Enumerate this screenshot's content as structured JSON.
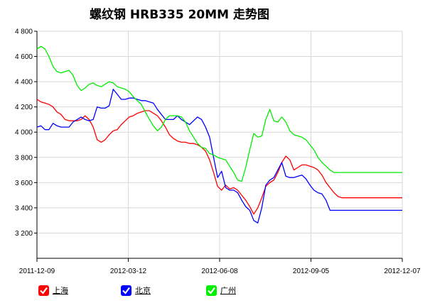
{
  "chart_data": {
    "type": "line",
    "title": "螺纹钢 HRB335 20MM 走势图",
    "xlabel": "",
    "ylabel": "",
    "ylim": [
      3000,
      4800
    ],
    "yticks": [
      3200,
      3400,
      3600,
      3800,
      4000,
      4200,
      4400,
      4600,
      4800
    ],
    "ytick_labels": [
      "3 200",
      "3 400",
      "3 600",
      "3 800",
      "4 000",
      "4 200",
      "4 400",
      "4 600",
      "4 800"
    ],
    "xtick_labels": [
      "2011-12-09",
      "2012-03-12",
      "2012-06-08",
      "2012-09-05",
      "2012-12-07"
    ],
    "grid": true,
    "legend_position": "bottom",
    "x": [
      0,
      4,
      8,
      12,
      16,
      20,
      24,
      28,
      32,
      36,
      40,
      44,
      48,
      52,
      56,
      60,
      64,
      68,
      72,
      76,
      80,
      84,
      88,
      92,
      96,
      100,
      104,
      108,
      112,
      116,
      120,
      124,
      128,
      132,
      136,
      140,
      144,
      148,
      152,
      156,
      160,
      164,
      168,
      172,
      176,
      180,
      184,
      188,
      192,
      196,
      200,
      204,
      208,
      212,
      216,
      220,
      224,
      228,
      232,
      236,
      240,
      244,
      248,
      252,
      256,
      260,
      264,
      268,
      272,
      276,
      280,
      284,
      288,
      292,
      296,
      300,
      304,
      308,
      312,
      316,
      320,
      324,
      328,
      332,
      336,
      340,
      344,
      348,
      352,
      356,
      360,
      364
    ],
    "series": [
      {
        "name": "上海",
        "color": "#ff0000",
        "values": [
          4260,
          4240,
          4230,
          4220,
          4200,
          4160,
          4140,
          4100,
          4090,
          4090,
          4090,
          4100,
          4130,
          4100,
          4040,
          3940,
          3920,
          3940,
          3980,
          4010,
          4020,
          4060,
          4090,
          4120,
          4130,
          4150,
          4160,
          4170,
          4170,
          4150,
          4130,
          4090,
          4040,
          3980,
          3950,
          3930,
          3920,
          3920,
          3910,
          3910,
          3900,
          3880,
          3850,
          3780,
          3680,
          3570,
          3540,
          3580,
          3550,
          3560,
          3540,
          3500,
          3460,
          3410,
          3350,
          3400,
          3480,
          3570,
          3600,
          3620,
          3680,
          3760,
          3810,
          3780,
          3700,
          3720,
          3740,
          3740,
          3730,
          3720,
          3700,
          3660,
          3600,
          3560,
          3520,
          3490,
          3480,
          3480,
          3480,
          3480,
          3480,
          3480,
          3480,
          3480,
          3480,
          3480,
          3480,
          3480,
          3480,
          3480,
          3480,
          3480
        ]
      },
      {
        "name": "北京",
        "color": "#0000ff",
        "values": [
          4040,
          4050,
          4020,
          4020,
          4070,
          4050,
          4040,
          4040,
          4040,
          4080,
          4100,
          4120,
          4100,
          4090,
          4100,
          4200,
          4190,
          4190,
          4210,
          4340,
          4300,
          4260,
          4260,
          4270,
          4270,
          4260,
          4250,
          4250,
          4240,
          4230,
          4180,
          4140,
          4100,
          4100,
          4100,
          4130,
          4100,
          4080,
          4060,
          4090,
          4120,
          4100,
          4040,
          3960,
          3800,
          3640,
          3690,
          3560,
          3540,
          3540,
          3520,
          3460,
          3410,
          3380,
          3300,
          3280,
          3400,
          3580,
          3620,
          3640,
          3700,
          3760,
          3650,
          3640,
          3640,
          3650,
          3660,
          3630,
          3580,
          3540,
          3520,
          3510,
          3460,
          3380,
          3380,
          3380,
          3380,
          3380,
          3380,
          3380,
          3380,
          3380,
          3380,
          3380,
          3380,
          3380,
          3380,
          3380,
          3380,
          3380,
          3380,
          3380
        ]
      },
      {
        "name": "广州",
        "color": "#00ee00",
        "values": [
          4660,
          4680,
          4660,
          4600,
          4520,
          4480,
          4470,
          4480,
          4490,
          4450,
          4370,
          4330,
          4350,
          4380,
          4390,
          4370,
          4360,
          4380,
          4400,
          4390,
          4360,
          4350,
          4340,
          4320,
          4280,
          4250,
          4220,
          4160,
          4100,
          4050,
          4010,
          4040,
          4100,
          4130,
          4130,
          4130,
          4120,
          4080,
          4010,
          3960,
          3910,
          3880,
          3870,
          3830,
          3820,
          3800,
          3790,
          3780,
          3730,
          3680,
          3620,
          3610,
          3720,
          3860,
          3990,
          3960,
          3970,
          4100,
          4180,
          4090,
          4080,
          4120,
          4080,
          4010,
          3980,
          3970,
          3960,
          3940,
          3900,
          3860,
          3800,
          3760,
          3730,
          3700,
          3680,
          3680,
          3680,
          3680,
          3680,
          3680,
          3680,
          3680,
          3680,
          3680,
          3680,
          3680,
          3680,
          3680,
          3680,
          3680,
          3680,
          3680
        ]
      }
    ]
  },
  "legend": {
    "items": [
      {
        "label": "上海",
        "color": "#ff0000"
      },
      {
        "label": "北京",
        "color": "#0000ff"
      },
      {
        "label": "广州",
        "color": "#00ee00"
      }
    ]
  },
  "icons": {
    "legend_check": "check-icon"
  }
}
